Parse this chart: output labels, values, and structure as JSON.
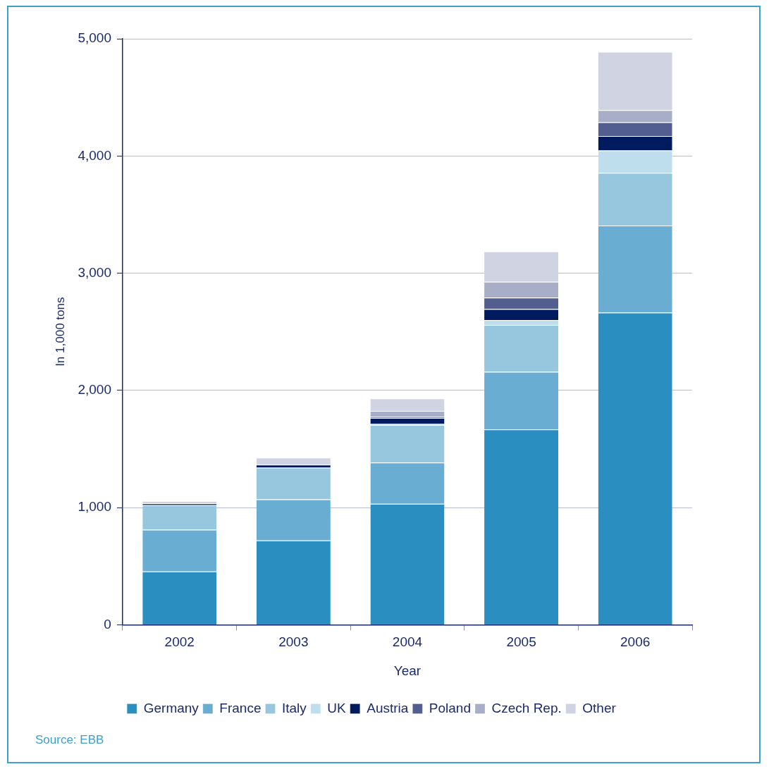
{
  "chart_data": {
    "type": "bar",
    "stacked": true,
    "xlabel": "Year",
    "ylabel": "In 1,000 tons",
    "categories": [
      "2002",
      "2003",
      "2004",
      "2005",
      "2006"
    ],
    "series": [
      {
        "name": "Germany",
        "color": "#2a8fc0",
        "values": [
          455,
          720,
          1033,
          1667,
          2663
        ]
      },
      {
        "name": "France",
        "color": "#69aed2",
        "values": [
          357,
          350,
          351,
          492,
          744
        ]
      },
      {
        "name": "Italy",
        "color": "#97c6df",
        "values": [
          209,
          271,
          320,
          399,
          449
        ]
      },
      {
        "name": "UK",
        "color": "#bfdeed",
        "values": [
          null,
          null,
          10,
          43,
          191
        ]
      },
      {
        "name": "Austria",
        "color": "#001a5e",
        "values": [
          15,
          25,
          50,
          93,
          123
        ]
      },
      {
        "name": "Poland",
        "color": "#525e8f",
        "values": [
          null,
          null,
          10,
          98,
          117
        ]
      },
      {
        "name": "Czech Rep.",
        "color": "#a9aec8",
        "values": [
          null,
          null,
          50,
          135,
          104
        ]
      },
      {
        "name": "Other",
        "color": "#d0d3e2",
        "values": [
          20,
          60,
          107,
          259,
          498
        ]
      }
    ],
    "ylim": [
      0,
      5000
    ],
    "yticks": [
      {
        "value": 0,
        "label": "0"
      },
      {
        "value": 1000,
        "label": "1,000"
      },
      {
        "value": 2000,
        "label": "2,000"
      },
      {
        "value": 3000,
        "label": "3,000"
      },
      {
        "value": 4000,
        "label": "4,000"
      },
      {
        "value": 5000,
        "label": "5,000"
      }
    ],
    "grid": "y",
    "legend": "bottom",
    "annotations": [
      "Source: EBB"
    ]
  }
}
